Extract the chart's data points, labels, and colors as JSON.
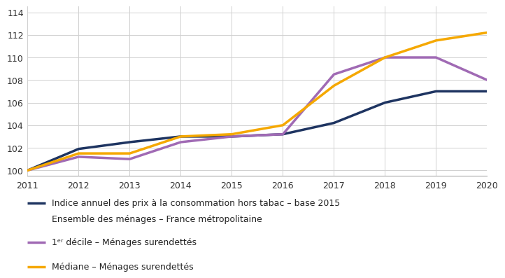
{
  "years": [
    2011,
    2012,
    2013,
    2014,
    2015,
    2016,
    2017,
    2018,
    2019,
    2020
  ],
  "indice_prix": [
    100,
    101.9,
    102.5,
    103.0,
    103.0,
    103.2,
    104.2,
    106.0,
    107.0,
    107.0
  ],
  "premier_decile": [
    100,
    101.2,
    101.0,
    102.5,
    103.0,
    103.2,
    108.5,
    110.0,
    110.0,
    108.0
  ],
  "mediane": [
    100,
    101.5,
    101.5,
    103.0,
    103.2,
    104.0,
    107.5,
    110.0,
    111.5,
    112.2
  ],
  "color_indice": "#1e3461",
  "color_decile": "#a06ab4",
  "color_mediane": "#f5a800",
  "ylim_min": 99.5,
  "ylim_max": 114.5,
  "yticks": [
    100,
    102,
    104,
    106,
    108,
    110,
    112,
    114
  ],
  "xticks": [
    2011,
    2012,
    2013,
    2014,
    2015,
    2016,
    2017,
    2018,
    2019,
    2020
  ],
  "legend_indice_line1": "Indice annuel des prix à la consommation hors tabac – base 2015",
  "legend_indice_line2": "Ensemble des ménages – France métropolitaine",
  "legend_decile": "1ᵉʳ décile – Ménages surendettés",
  "legend_mediane": "Médiane – Ménages surendettés",
  "line_width": 2.5,
  "background_color": "#ffffff",
  "grid_color": "#d0d0d0",
  "tick_color": "#333333",
  "font_size_ticks": 9,
  "font_size_legend": 9
}
